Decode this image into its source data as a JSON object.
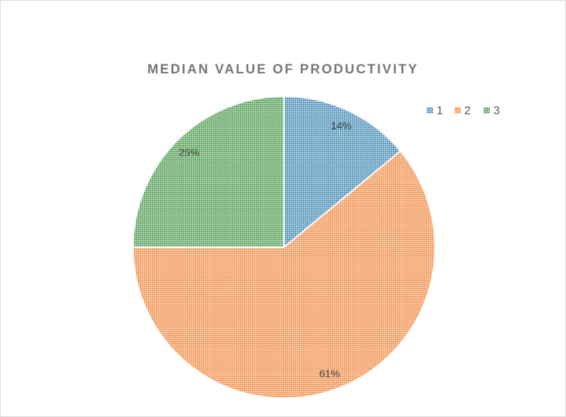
{
  "chart_data": {
    "type": "pie",
    "title": "MEDIAN VALUE OF PRODUCTIVITY",
    "categories": [
      "1",
      "2",
      "3"
    ],
    "values": [
      14,
      61,
      25
    ],
    "labels": [
      "14%",
      "61%",
      "25%"
    ],
    "colors": [
      {
        "light": "#bfe4f5",
        "dark": "#1f5f8b"
      },
      {
        "light": "#fbd3b6",
        "dark": "#ed7d31"
      },
      {
        "light": "#bfe3bf",
        "dark": "#2e7d32"
      }
    ],
    "legend_position": "top-right",
    "start_angle_deg": 0,
    "direction": "clockwise"
  }
}
